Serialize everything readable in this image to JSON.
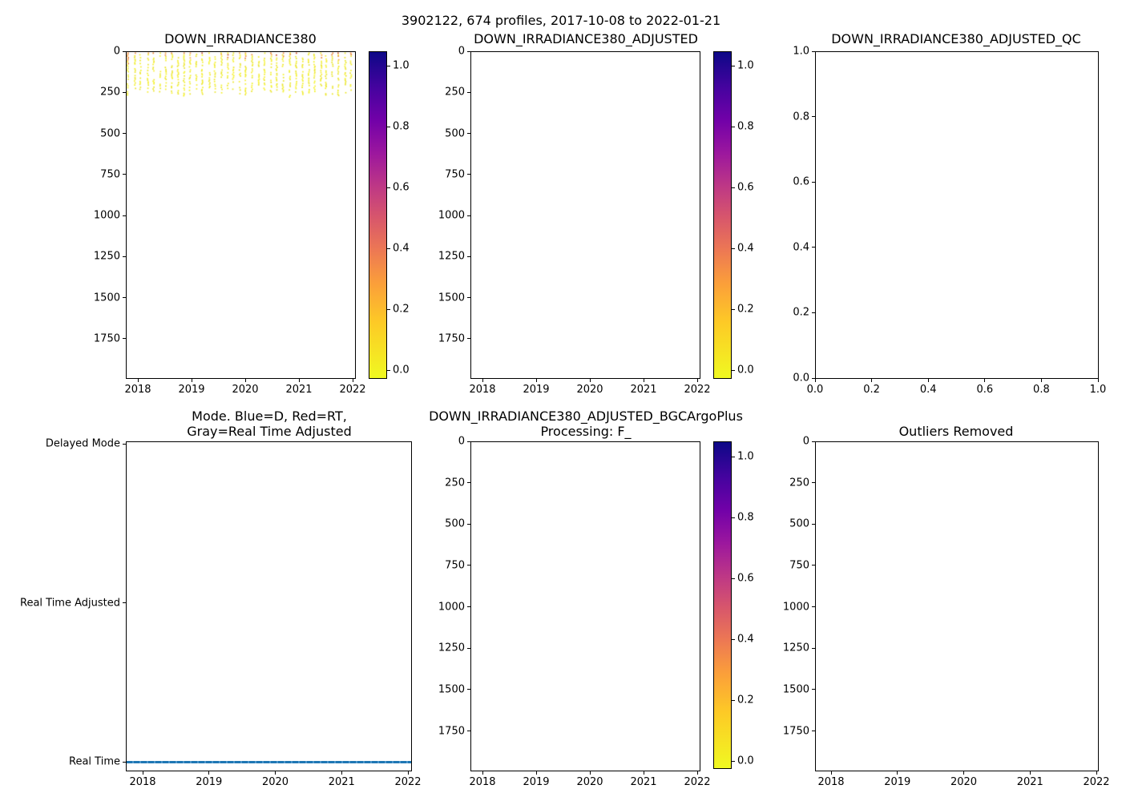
{
  "figure": {
    "suptitle": "3902122, 674 profiles, 2017-10-08 to 2022-01-21"
  },
  "colorbar_common": {
    "tick_labels": [
      "1.0",
      "0.8",
      "0.6",
      "0.4",
      "0.2",
      "0.0"
    ],
    "colormap": "plasma_r",
    "vmin": 0.0,
    "vmax": 1.0,
    "gradient_top_to_bottom": [
      "#0d0887",
      "#46039f",
      "#7201a8",
      "#9c179e",
      "#bd3786",
      "#d8576b",
      "#ed7953",
      "#fb9f3a",
      "#fdca26",
      "#f0f921"
    ]
  },
  "chart_data": [
    {
      "type": "scatter",
      "title": "DOWN_IRRADIANCE380",
      "x_tick_labels": [
        "2018",
        "2019",
        "2020",
        "2021",
        "2022"
      ],
      "y_tick_labels": [
        "0",
        "250",
        "500",
        "750",
        "1000",
        "1250",
        "1500",
        "1750"
      ],
      "x_range_years": [
        2017.78,
        2022.04
      ],
      "y_range_dbar": [
        0,
        1990
      ],
      "y_inverted": true,
      "grid": false,
      "has_colorbar": true,
      "points_summary": {
        "n_profiles": 674,
        "date_start": "2017-10-08",
        "date_end": "2022-01-21",
        "depth_extent_dbar": [
          0,
          260
        ],
        "description": "674 profiles drawn as ~37 vertical dotted columns between 2018 and 2022; values near 0.0 (yellow) from surface to ~250 dbar, occasional 0.1-0.35 (orange/red) points in the top ~20 dbar",
        "value_range": [
          0.0,
          0.35
        ]
      }
    },
    {
      "type": "scatter",
      "title": "DOWN_IRRADIANCE380_ADJUSTED",
      "empty": true,
      "x_tick_labels": [
        "2018",
        "2019",
        "2020",
        "2021",
        "2022"
      ],
      "y_tick_labels": [
        "0",
        "250",
        "500",
        "750",
        "1000",
        "1250",
        "1500",
        "1750"
      ],
      "x_range_years": [
        2017.78,
        2022.04
      ],
      "y_range_dbar": [
        0,
        1990
      ],
      "y_inverted": true,
      "grid": false,
      "has_colorbar": true
    },
    {
      "type": "scatter",
      "title": "DOWN_IRRADIANCE380_ADJUSTED_QC",
      "empty": true,
      "x_tick_labels": [
        "0.0",
        "0.2",
        "0.4",
        "0.6",
        "0.8",
        "1.0"
      ],
      "y_tick_labels": [
        "1.0",
        "0.8",
        "0.6",
        "0.4",
        "0.2",
        "0.0"
      ],
      "x_range": [
        0.0,
        1.0
      ],
      "y_range": [
        0.0,
        1.0
      ],
      "grid": false,
      "has_colorbar": false
    },
    {
      "type": "line",
      "title": "Mode. Blue=D, Red=RT,\nGray=Real Time Adjusted",
      "x_tick_labels": [
        "2018",
        "2019",
        "2020",
        "2021",
        "2022"
      ],
      "y_tick_labels": [
        "Delayed Mode",
        "Real Time Adjusted",
        "Real Time"
      ],
      "x_range_years": [
        2017.75,
        2022.05
      ],
      "grid": false,
      "has_colorbar": false,
      "series": [
        {
          "name": "mode",
          "constant_value": "Real Time",
          "color": "#1f77b4",
          "x_start": 2017.77,
          "x_end": 2022.06
        }
      ]
    },
    {
      "type": "scatter",
      "title": "DOWN_IRRADIANCE380_ADJUSTED_BGCArgoPlus\nProcessing: F_",
      "empty": true,
      "x_tick_labels": [
        "2018",
        "2019",
        "2020",
        "2021",
        "2022"
      ],
      "y_tick_labels": [
        "0",
        "250",
        "500",
        "750",
        "1000",
        "1250",
        "1500",
        "1750"
      ],
      "x_range_years": [
        2017.78,
        2022.04
      ],
      "y_range_dbar": [
        0,
        1990
      ],
      "y_inverted": true,
      "grid": false,
      "has_colorbar": true
    },
    {
      "type": "scatter",
      "title": "Outliers Removed",
      "empty": true,
      "x_tick_labels": [
        "2018",
        "2019",
        "2020",
        "2021",
        "2022"
      ],
      "y_tick_labels": [
        "0",
        "250",
        "500",
        "750",
        "1000",
        "1250",
        "1500",
        "1750"
      ],
      "x_range_years": [
        2017.75,
        2022.05
      ],
      "y_range_dbar": [
        0,
        1990
      ],
      "y_inverted": true,
      "grid": false,
      "has_colorbar": false
    }
  ],
  "scatter_style": {
    "yellow_shades": [
      "#f2f21e",
      "#ebe41c",
      "#f7ef2a",
      "#e9e52a"
    ],
    "orange_shades": [
      "#f9a23a",
      "#ef8b42",
      "#e77c28"
    ],
    "red_shade": "#cc4c24",
    "marker": "small square ~2px"
  }
}
